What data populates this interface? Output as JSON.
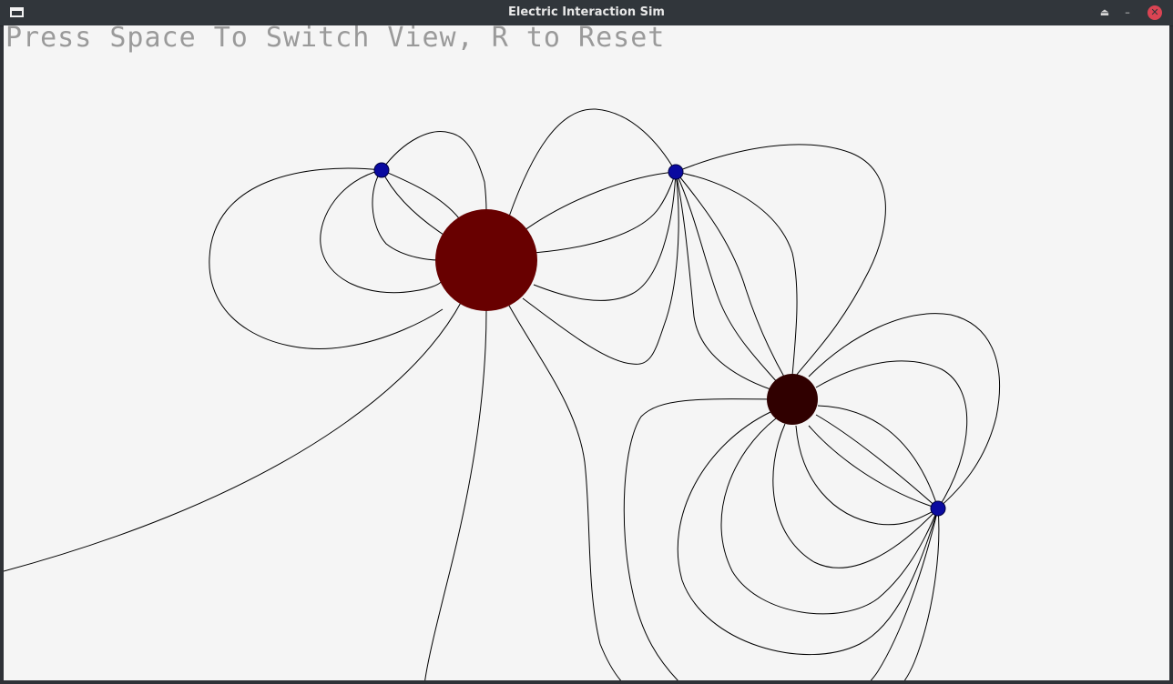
{
  "window": {
    "title": "Electric Interaction Sim",
    "icons": {
      "app": "window-icon",
      "keep_above": "eject-icon",
      "minimize": "minimize-icon",
      "close": "close-icon"
    },
    "glyphs": {
      "keep_above": "⏏",
      "minimize": "–",
      "close": "✕"
    },
    "colors": {
      "titlebar": "#31363b",
      "close": "#da4453"
    }
  },
  "canvas": {
    "hint": "Press Space To Switch View, R to Reset",
    "background": "#f5f5f5",
    "charges": [
      {
        "name": "large-positive-charge",
        "color": "#680000"
      },
      {
        "name": "medium-positive-charge",
        "color": "#300000"
      },
      {
        "name": "negative-charge-1",
        "color": "#0a0aa0"
      },
      {
        "name": "negative-charge-2",
        "color": "#0a0aa0"
      },
      {
        "name": "negative-charge-3",
        "color": "#0a0aa0"
      }
    ],
    "field_line_color": "#000000"
  }
}
